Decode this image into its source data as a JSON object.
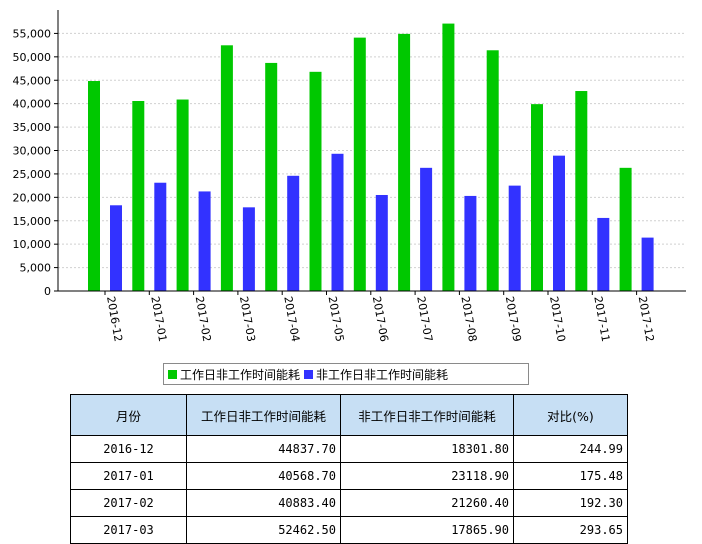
{
  "chart_data": {
    "type": "bar",
    "categories": [
      "2016-12",
      "2017-01",
      "2017-02",
      "2017-03",
      "2017-04",
      "2017-05",
      "2017-06",
      "2017-07",
      "2017-08",
      "2017-09",
      "2017-10",
      "2017-11",
      "2017-12"
    ],
    "series": [
      {
        "name": "工作日非工作时间能耗",
        "color": "#00c800",
        "values": [
          44837.7,
          40568.7,
          40883.4,
          52462.5,
          48700,
          46800,
          54100,
          54900,
          57100,
          51400,
          39900,
          42700,
          26300
        ]
      },
      {
        "name": "非工作日非工作时间能耗",
        "color": "#3232ff",
        "values": [
          18301.8,
          23118.9,
          21260.4,
          17865.9,
          24600,
          29300,
          20500,
          26300,
          20300,
          22500,
          28900,
          15600,
          11400
        ]
      }
    ],
    "yticks": [
      0,
      5000,
      10000,
      15000,
      20000,
      25000,
      30000,
      35000,
      40000,
      45000,
      50000,
      55000
    ],
    "ytick_labels": [
      "0",
      "5,000",
      "10,000",
      "15,000",
      "20,000",
      "25,000",
      "30,000",
      "35,000",
      "40,000",
      "45,000",
      "50,000",
      "55,000"
    ],
    "ylim": [
      0,
      60000
    ],
    "grid": true,
    "legend_position": "bottom"
  },
  "table": {
    "headers": [
      "月份",
      "工作日非工作时间能耗",
      "非工作日非工作时间能耗",
      "对比(%)"
    ],
    "rows": [
      [
        "2016-12",
        "44837.70",
        "18301.80",
        "244.99"
      ],
      [
        "2017-01",
        "40568.70",
        "23118.90",
        "175.48"
      ],
      [
        "2017-02",
        "40883.40",
        "21260.40",
        "192.30"
      ],
      [
        "2017-03",
        "52462.50",
        "17865.90",
        "293.65"
      ]
    ]
  }
}
